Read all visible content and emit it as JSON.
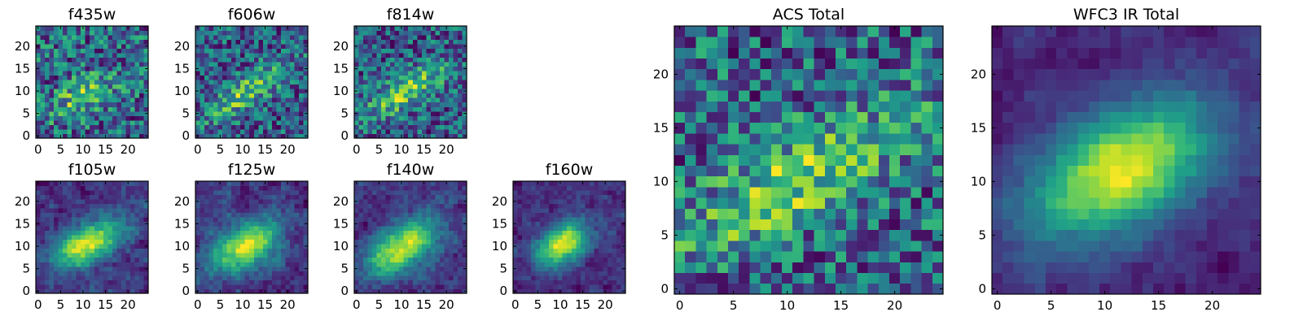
{
  "chart_data": [
    {
      "type": "heatmap",
      "title": "f435w",
      "grid_size": 25,
      "xlim": [
        0,
        25
      ],
      "ylim": [
        0,
        25
      ],
      "x_ticks": [
        0,
        5,
        10,
        15,
        20
      ],
      "y_ticks": [
        0,
        5,
        10,
        15,
        20
      ],
      "colormap": "viridis",
      "pattern": {
        "center": [
          10,
          9
        ],
        "sx": 5.5,
        "sy": 2.5,
        "angle_deg": 30,
        "peak": 0.35,
        "base": 0.58,
        "noise": 0.33,
        "smooth": 0,
        "seed": 11
      }
    },
    {
      "type": "heatmap",
      "title": "f606w",
      "grid_size": 25,
      "xlim": [
        0,
        25
      ],
      "ylim": [
        0,
        25
      ],
      "x_ticks": [
        0,
        5,
        10,
        15,
        20
      ],
      "y_ticks": [
        0,
        5,
        10,
        15,
        20
      ],
      "colormap": "viridis",
      "pattern": {
        "center": [
          11,
          10
        ],
        "sx": 7.5,
        "sy": 2.2,
        "angle_deg": 33,
        "peak": 0.4,
        "base": 0.45,
        "noise": 0.28,
        "smooth": 0,
        "seed": 23
      }
    },
    {
      "type": "heatmap",
      "title": "f814w",
      "grid_size": 25,
      "xlim": [
        0,
        25
      ],
      "ylim": [
        0,
        25
      ],
      "x_ticks": [
        0,
        5,
        10,
        15,
        20
      ],
      "y_ticks": [
        0,
        5,
        10,
        15,
        20
      ],
      "colormap": "viridis",
      "pattern": {
        "center": [
          11,
          10
        ],
        "sx": 7,
        "sy": 2.4,
        "angle_deg": 30,
        "peak": 0.42,
        "base": 0.45,
        "noise": 0.27,
        "smooth": 0,
        "seed": 37
      }
    },
    {
      "type": "heatmap",
      "title": "f105w",
      "grid_size": 25,
      "xlim": [
        0,
        25
      ],
      "ylim": [
        0,
        25
      ],
      "x_ticks": [
        0,
        5,
        10,
        15,
        20
      ],
      "y_ticks": [
        0,
        5,
        10,
        15,
        20
      ],
      "colormap": "viridis",
      "pattern": {
        "center": [
          11,
          10.5
        ],
        "sx": 6,
        "sy": 3,
        "angle_deg": 28,
        "peak": 0.62,
        "base": 0.3,
        "noise": 0.16,
        "smooth": 1,
        "seed": 41
      }
    },
    {
      "type": "heatmap",
      "title": "f125w",
      "grid_size": 25,
      "xlim": [
        0,
        25
      ],
      "ylim": [
        0,
        25
      ],
      "x_ticks": [
        0,
        5,
        10,
        15,
        20
      ],
      "y_ticks": [
        0,
        5,
        10,
        15,
        20
      ],
      "colormap": "viridis",
      "pattern": {
        "center": [
          11,
          10
        ],
        "sx": 5.5,
        "sy": 3,
        "angle_deg": 30,
        "peak": 0.62,
        "base": 0.3,
        "noise": 0.17,
        "smooth": 1,
        "seed": 53
      }
    },
    {
      "type": "heatmap",
      "title": "f140w",
      "grid_size": 25,
      "xlim": [
        0,
        25
      ],
      "ylim": [
        0,
        25
      ],
      "x_ticks": [
        0,
        5,
        10,
        15,
        20
      ],
      "y_ticks": [
        0,
        5,
        10,
        15,
        20
      ],
      "colormap": "viridis",
      "pattern": {
        "center": [
          10.5,
          10
        ],
        "sx": 6,
        "sy": 3.2,
        "angle_deg": 33,
        "peak": 0.62,
        "base": 0.3,
        "noise": 0.16,
        "smooth": 1,
        "seed": 67
      }
    },
    {
      "type": "heatmap",
      "title": "f160w",
      "grid_size": 25,
      "xlim": [
        0,
        25
      ],
      "ylim": [
        0,
        25
      ],
      "x_ticks": [
        0,
        5,
        10,
        15,
        20
      ],
      "y_ticks": [
        0,
        5,
        10,
        15,
        20
      ],
      "colormap": "viridis",
      "pattern": {
        "center": [
          10.5,
          10.5
        ],
        "sx": 4.5,
        "sy": 2.8,
        "angle_deg": 33,
        "peak": 0.7,
        "base": 0.25,
        "noise": 0.14,
        "smooth": 1,
        "seed": 79
      }
    },
    {
      "type": "heatmap",
      "title": "ACS Total",
      "grid_size": 25,
      "xlim": [
        0,
        25
      ],
      "ylim": [
        0,
        25
      ],
      "x_ticks": [
        0,
        5,
        10,
        15,
        20
      ],
      "y_ticks": [
        0,
        5,
        10,
        15,
        20
      ],
      "colormap": "viridis",
      "pattern": {
        "center": [
          10.5,
          10
        ],
        "sx": 8,
        "sy": 2.5,
        "angle_deg": 30,
        "peak": 0.3,
        "base": 0.5,
        "noise": 0.22,
        "smooth": 0,
        "seed": 97
      }
    },
    {
      "type": "heatmap",
      "title": "WFC3 IR Total",
      "grid_size": 25,
      "xlim": [
        0,
        25
      ],
      "ylim": [
        0,
        25
      ],
      "x_ticks": [
        0,
        5,
        10,
        15,
        20
      ],
      "y_ticks": [
        0,
        5,
        10,
        15,
        20
      ],
      "colormap": "viridis",
      "pattern": {
        "center": [
          11.5,
          11
        ],
        "sx": 6.5,
        "sy": 3.6,
        "angle_deg": 30,
        "peak": 0.72,
        "base": 0.22,
        "noise": 0.1,
        "smooth": 1,
        "seed": 113
      }
    }
  ],
  "colormap_stops": [
    "#440154",
    "#482878",
    "#3e4989",
    "#31688e",
    "#26828e",
    "#1f9e89",
    "#35b779",
    "#6ece58",
    "#b5de2b",
    "#fde725"
  ]
}
